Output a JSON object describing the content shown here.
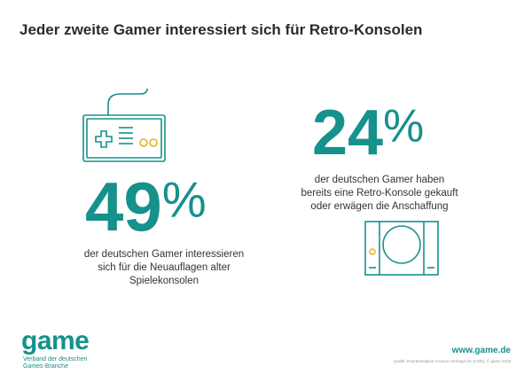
{
  "header": {
    "title": "Jeder zweite Gamer interessiert sich für Retro-Konsolen"
  },
  "stats": [
    {
      "number": "49",
      "unit": "%",
      "lines": [
        "der deutschen Gamer interessieren",
        "sich für die Neuauflagen alter",
        "Spielekonsolen"
      ]
    },
    {
      "number": "24",
      "unit": "%",
      "lines": [
        "der deutschen Gamer haben",
        "bereits eine Retro-Konsole gekauft",
        "oder erwägen die Anschaffung"
      ]
    }
  ],
  "footer": {
    "logo": "game",
    "logo_lines": [
      "Verband der deutschen",
      "Games-Branche"
    ],
    "url": "www.game.de",
    "source": "Quelle: Repräsentative YouGov-Umfrage (N=2.035), © game 2019"
  }
}
